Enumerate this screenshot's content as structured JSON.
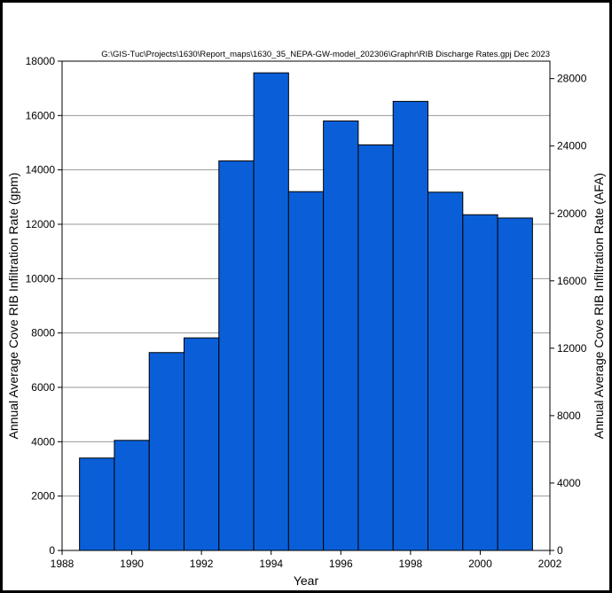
{
  "chart_data": {
    "type": "bar",
    "source_path": "G:\\GIS-Tuc\\Projects\\1630\\Report_maps\\1630_35_NEPA-GW-model_202306\\Graphr\\RIB Discharge Rates.gpj Dec 2023",
    "xlabel": "Year",
    "ylabel_left": "Annual Average Cove RIB Infiltration Rate (gpm)",
    "ylabel_right": "Annual Average Cove RIB Infiltration Rate (AFA)",
    "xlim": [
      1988,
      2002
    ],
    "ylim_left": [
      0,
      18000
    ],
    "ylim_right": [
      0,
      29034
    ],
    "x_ticks": [
      "1988",
      "1990",
      "1992",
      "1994",
      "1996",
      "1998",
      "2000",
      "2002"
    ],
    "y_ticks_left": [
      "0",
      "2000",
      "4000",
      "6000",
      "8000",
      "10000",
      "12000",
      "14000",
      "16000",
      "18000"
    ],
    "y_ticks_right": [
      "0",
      "4000",
      "8000",
      "12000",
      "16000",
      "20000",
      "24000",
      "28000"
    ],
    "grid": "horizontal",
    "bar_color": "#0a5fd8",
    "bars": [
      {
        "x_start": 1988.5,
        "x_end": 1989.5,
        "value": 3400
      },
      {
        "x_start": 1989.5,
        "x_end": 1990.5,
        "value": 4050
      },
      {
        "x_start": 1990.5,
        "x_end": 1991.5,
        "value": 7280
      },
      {
        "x_start": 1991.5,
        "x_end": 1992.5,
        "value": 7820
      },
      {
        "x_start": 1992.5,
        "x_end": 1993.5,
        "value": 14330
      },
      {
        "x_start": 1993.5,
        "x_end": 1994.5,
        "value": 17570
      },
      {
        "x_start": 1994.5,
        "x_end": 1995.5,
        "value": 13200
      },
      {
        "x_start": 1995.5,
        "x_end": 1996.5,
        "value": 15800
      },
      {
        "x_start": 1996.5,
        "x_end": 1997.5,
        "value": 14920
      },
      {
        "x_start": 1997.5,
        "x_end": 1998.5,
        "value": 16520
      },
      {
        "x_start": 1998.5,
        "x_end": 1999.5,
        "value": 13180
      },
      {
        "x_start": 1999.5,
        "x_end": 2000.5,
        "value": 12350
      },
      {
        "x_start": 2000.5,
        "x_end": 2001.5,
        "value": 12230
      }
    ]
  }
}
